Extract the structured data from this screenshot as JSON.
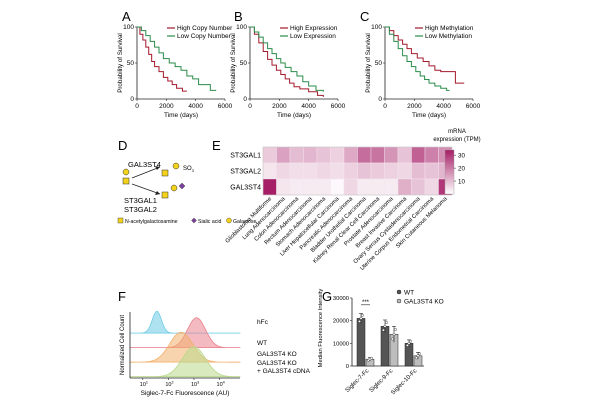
{
  "colors": {
    "red": "#a3192b",
    "green": "#2a8c4a",
    "heat_max": "#a61e66",
    "heat_min": "#ffffff",
    "hist_blue": "#6ecbe6",
    "hist_red": "#e9828e",
    "hist_orange": "#f2b06b",
    "hist_green": "#b9d88a",
    "yellow": "#f3d21c",
    "purple": "#7a3e9d"
  },
  "panels": {
    "A": "A",
    "B": "B",
    "C": "C",
    "D": "D",
    "E": "E",
    "F": "F",
    "G": "G"
  },
  "chart_data": [
    {
      "id": "A",
      "type": "line",
      "title": "",
      "xlabel": "Time (days)",
      "ylabel": "Probability of Survival",
      "xlim": [
        0,
        6000
      ],
      "ylim": [
        0,
        100
      ],
      "xticks": [
        0,
        2000,
        4000,
        6000
      ],
      "yticks": [
        0,
        50,
        100
      ],
      "series": [
        {
          "name": "High Copy Number",
          "color": "red",
          "points": [
            [
              0,
              100
            ],
            [
              200,
              90
            ],
            [
              400,
              82
            ],
            [
              600,
              72
            ],
            [
              800,
              62
            ],
            [
              1000,
              52
            ],
            [
              1200,
              45
            ],
            [
              1500,
              38
            ],
            [
              1800,
              30
            ],
            [
              2100,
              25
            ],
            [
              2400,
              20
            ],
            [
              2700,
              15
            ],
            [
              3100,
              11
            ],
            [
              3400,
              11
            ]
          ]
        },
        {
          "name": "Low Copy Number",
          "color": "green",
          "points": [
            [
              0,
              100
            ],
            [
              300,
              95
            ],
            [
              600,
              88
            ],
            [
              900,
              80
            ],
            [
              1200,
              72
            ],
            [
              1500,
              64
            ],
            [
              1800,
              56
            ],
            [
              2200,
              50
            ],
            [
              2600,
              45
            ],
            [
              3000,
              40
            ],
            [
              3400,
              32
            ],
            [
              3800,
              28
            ],
            [
              4200,
              20
            ],
            [
              4600,
              20
            ],
            [
              5000,
              12
            ],
            [
              5400,
              12
            ]
          ]
        }
      ]
    },
    {
      "id": "B",
      "type": "line",
      "title": "",
      "xlabel": "Time (days)",
      "ylabel": "Probability of Survival",
      "xlim": [
        0,
        6000
      ],
      "ylim": [
        0,
        100
      ],
      "xticks": [
        0,
        2000,
        4000,
        6000
      ],
      "yticks": [
        0,
        50,
        100
      ],
      "series": [
        {
          "name": "High Expression",
          "color": "red",
          "points": [
            [
              0,
              100
            ],
            [
              300,
              90
            ],
            [
              600,
              78
            ],
            [
              900,
              66
            ],
            [
              1200,
              55
            ],
            [
              1500,
              47
            ],
            [
              1800,
              40
            ],
            [
              2100,
              34
            ],
            [
              2400,
              28
            ],
            [
              2700,
              22
            ],
            [
              3000,
              17
            ],
            [
              3400,
              14
            ],
            [
              4000,
              10
            ],
            [
              4600,
              5
            ],
            [
              5000,
              3
            ]
          ]
        },
        {
          "name": "Low Expression",
          "color": "green",
          "points": [
            [
              0,
              100
            ],
            [
              300,
              93
            ],
            [
              600,
              86
            ],
            [
              900,
              78
            ],
            [
              1200,
              70
            ],
            [
              1500,
              63
            ],
            [
              1800,
              56
            ],
            [
              2100,
              50
            ],
            [
              2400,
              44
            ],
            [
              2800,
              38
            ],
            [
              3200,
              32
            ],
            [
              3600,
              24
            ],
            [
              4000,
              18
            ],
            [
              4500,
              12
            ],
            [
              5000,
              10
            ]
          ]
        }
      ]
    },
    {
      "id": "C",
      "type": "line",
      "title": "",
      "xlabel": "Time (days)",
      "ylabel": "Probability of Survival",
      "xlim": [
        0,
        6000
      ],
      "ylim": [
        0,
        100
      ],
      "xticks": [
        0,
        2000,
        4000,
        6000
      ],
      "yticks": [
        0,
        50,
        100
      ],
      "series": [
        {
          "name": "High Methylation",
          "color": "red",
          "points": [
            [
              0,
              100
            ],
            [
              300,
              95
            ],
            [
              600,
              88
            ],
            [
              900,
              82
            ],
            [
              1200,
              76
            ],
            [
              1500,
              70
            ],
            [
              1800,
              63
            ],
            [
              2200,
              57
            ],
            [
              2600,
              52
            ],
            [
              3000,
              46
            ],
            [
              3400,
              40
            ],
            [
              3800,
              38
            ],
            [
              4200,
              38
            ],
            [
              4600,
              38
            ],
            [
              4800,
              22
            ],
            [
              5400,
              22
            ]
          ]
        },
        {
          "name": "Low Methylation",
          "color": "green",
          "points": [
            [
              0,
              100
            ],
            [
              300,
              90
            ],
            [
              600,
              80
            ],
            [
              900,
              70
            ],
            [
              1200,
              60
            ],
            [
              1500,
              52
            ],
            [
              1800,
              45
            ],
            [
              2100,
              38
            ],
            [
              2400,
              32
            ],
            [
              2700,
              27
            ],
            [
              3000,
              22
            ],
            [
              3400,
              18
            ],
            [
              3800,
              15
            ],
            [
              4200,
              12
            ],
            [
              4400,
              12
            ]
          ]
        }
      ]
    },
    {
      "id": "E",
      "type": "heatmap",
      "rows": [
        "ST3GAL1",
        "ST3GAL2",
        "GAL3ST4"
      ],
      "columns": [
        "Glioblastoma Multiforme",
        "Lung Adenocarcinoma",
        "Colon Adenocarcinoma",
        "Rectum Adenocarcinoma",
        "Stomach Adenocarcinoma",
        "Liver Hepatocellular Carcinoma",
        "Pancreatic Adenocarcinoma",
        "Bladder Urothelial Carcinoma",
        "Kidney Renal Clear Cell Carcinoma",
        "Prostate Adenocarcinoma",
        "Breast Invasive Carcinoma",
        "Ovary Serous Cystadenocarcinoma",
        "Uterine Corpus Endometrial Carcinoma",
        "Skin Cutaneous Melanoma"
      ],
      "values": [
        [
          8,
          14,
          10,
          11,
          9,
          7,
          13,
          22,
          21,
          16,
          9,
          24,
          19,
          17
        ],
        [
          4,
          6,
          5,
          5,
          6,
          5,
          7,
          9,
          8,
          7,
          6,
          10,
          9,
          11
        ],
        [
          34,
          4,
          3,
          3,
          3,
          1,
          6,
          3,
          3,
          3,
          12,
          9,
          6,
          30
        ]
      ],
      "colorbar": {
        "label_lines": [
          "mRNA",
          "expression (TPM)"
        ],
        "ticks": [
          10,
          20,
          30
        ],
        "range": [
          0,
          34
        ]
      }
    },
    {
      "id": "F",
      "type": "histogram",
      "xlabel": "Siglec-7-Fc Fluorescence (AU)",
      "ylabel": "Normalized Cell Count",
      "xticks": [
        "10",
        "10",
        "10",
        "10"
      ],
      "xtick_exponents": [
        "1",
        "2",
        "3",
        "4"
      ],
      "series": [
        {
          "name": "hFc",
          "color": "hist_blue",
          "log_peak": 1.55,
          "width": 0.18
        },
        {
          "name": "WT",
          "color": "hist_red",
          "log_peak": 3.1,
          "width": 0.35
        },
        {
          "name": "GAL3ST4 KO",
          "color": "hist_orange",
          "log_peak": 2.5,
          "width": 0.45
        },
        {
          "name": "GAL3ST4 KO + GAL3ST4 cDNA",
          "color": "hist_green",
          "log_peak": 3.0,
          "width": 0.45
        }
      ],
      "legend_lines": [
        [
          "hFc"
        ],
        [
          "WT"
        ],
        [
          "GAL3ST4 KO"
        ],
        [
          "GAL3ST4 KO",
          "+ GAL3ST4 cDNA"
        ]
      ]
    },
    {
      "id": "G",
      "type": "bar",
      "ylabel": "Median Fluorescence Intensity",
      "ylim": [
        0,
        30000
      ],
      "yticks": [
        0,
        10000,
        20000,
        30000
      ],
      "categories": [
        "Siglec-7-Fc",
        "Siglec-9-Fc",
        "Siglec-10-Fc"
      ],
      "series": [
        {
          "name": "WT",
          "color": "#555555",
          "values": [
            21000,
            17500,
            10000
          ],
          "errors": [
            2200,
            2800,
            1500
          ]
        },
        {
          "name": "GAL3ST4 KO",
          "color": "#bdbdbd",
          "values": [
            3000,
            14000,
            4500
          ],
          "errors": [
            700,
            3500,
            1500
          ]
        }
      ],
      "significance": "***"
    }
  ],
  "diagram_D": {
    "labels": {
      "top_enzyme": "GAL3ST4",
      "bottom_enzyme_1": "ST3GAL1",
      "bottom_enzyme_2": "ST3GAL2",
      "sulfate": "SO",
      "sulfate_sub": "3"
    },
    "legend": [
      {
        "shape": "square",
        "color": "yellow",
        "label": "N-acetylgalactosamine"
      },
      {
        "shape": "diamond",
        "color": "purple",
        "label": "Sialic acid"
      },
      {
        "shape": "circle",
        "color": "yellow",
        "label": "Galactose"
      }
    ]
  }
}
